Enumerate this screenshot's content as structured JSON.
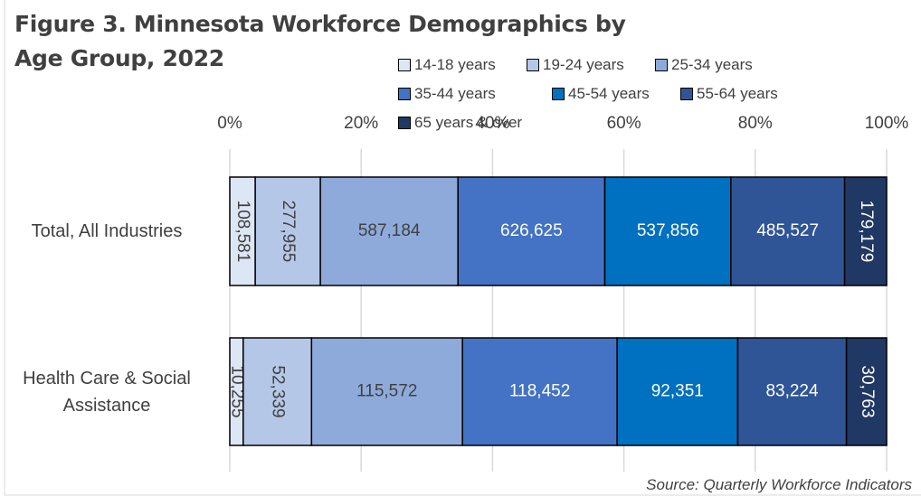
{
  "chart_data": {
    "type": "bar",
    "orientation": "horizontal",
    "stacking": "percent",
    "title": "Figure 3. Minnesota Workforce Demographics by Age Group, 2022",
    "source": "Source: Quarterly Workforce Indicators",
    "categories": [
      "Total, All Industries",
      "Health Care & Social Assistance"
    ],
    "series": [
      {
        "name": "14-18 years",
        "color": "#dce6f4",
        "label_color": "#404040",
        "values": [
          108581,
          10255
        ],
        "value_labels": [
          "108,581",
          "10,255"
        ]
      },
      {
        "name": "19-24 years",
        "color": "#b4c7e7",
        "label_color": "#404040",
        "values": [
          277955,
          52339
        ],
        "value_labels": [
          "277,955",
          "52,339"
        ]
      },
      {
        "name": "25-34 years",
        "color": "#8eaadb",
        "label_color": "#404040",
        "values": [
          587184,
          115572
        ],
        "value_labels": [
          "587,184",
          "115,572"
        ]
      },
      {
        "name": "35-44 years",
        "color": "#4472c4",
        "label_color": "#ffffff",
        "values": [
          626625,
          118452
        ],
        "value_labels": [
          "626,625",
          "118,452"
        ]
      },
      {
        "name": "45-54 years",
        "color": "#0070c0",
        "label_color": "#ffffff",
        "values": [
          537856,
          92351
        ],
        "value_labels": [
          "537,856",
          "92,351"
        ]
      },
      {
        "name": "55-64 years",
        "color": "#2f5597",
        "label_color": "#ffffff",
        "values": [
          485527,
          83224
        ],
        "value_labels": [
          "485,527",
          "83,224"
        ]
      },
      {
        "name": "65 years & over",
        "color": "#203864",
        "label_color": "#ffffff",
        "values": [
          179179,
          30763
        ],
        "value_labels": [
          "179,179",
          "30,763"
        ]
      }
    ],
    "xlim": [
      0,
      100
    ],
    "xticks": [
      {
        "value": 0,
        "label": "0%"
      },
      {
        "value": 20,
        "label": "20%"
      },
      {
        "value": 40,
        "label": "40%"
      },
      {
        "value": 60,
        "label": "60%"
      },
      {
        "value": 80,
        "label": "80%"
      },
      {
        "value": 100,
        "label": "100%"
      }
    ],
    "grid": true,
    "legend": "top"
  }
}
